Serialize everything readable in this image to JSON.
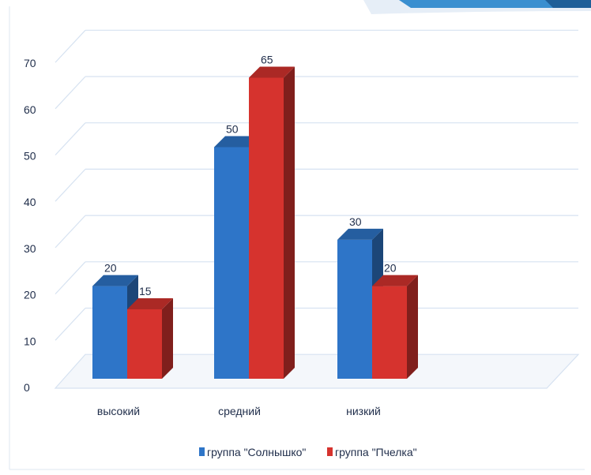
{
  "chart_data": {
    "type": "bar",
    "categories": [
      "высокий",
      "средний",
      "низкий"
    ],
    "series": [
      {
        "name": "группа \"Солнышко\"",
        "values": [
          20,
          50,
          30
        ],
        "color": "#2e75c8"
      },
      {
        "name": "группа \"Пчелка\"",
        "values": [
          15,
          65,
          20
        ],
        "color": "#d6332e"
      }
    ],
    "yticks": [
      0,
      10,
      20,
      30,
      40,
      50,
      60,
      70
    ],
    "ylim": [
      0,
      70
    ],
    "grid": true,
    "legend": "bottom",
    "data_labels": true,
    "three_d": true
  }
}
